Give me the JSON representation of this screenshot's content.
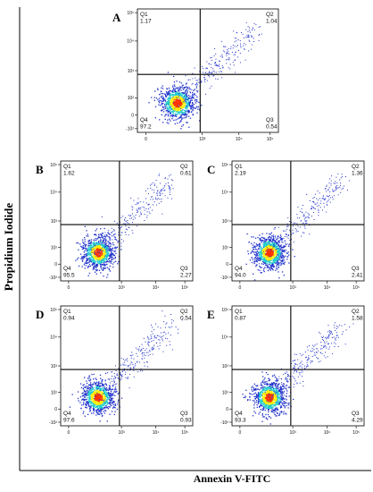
{
  "chart_data": {
    "type": "scatter",
    "ylabel": "Propidium Iodide",
    "xlabel": "Annexin V-FITC",
    "colors": {
      "density_low": "#2233cc",
      "density_mid": "#22cccc",
      "density_high": "#ffee00",
      "density_peak": "#ff3300",
      "gate": "#000000"
    },
    "y_ticks": [
      "10⁵",
      "10⁴",
      "10³",
      "10²",
      "0",
      "-10²"
    ],
    "x_ticks": [
      "0",
      "10³",
      "10⁴",
      "10⁵"
    ],
    "panels": [
      {
        "id": "A",
        "q1": {
          "label": "Q1",
          "value": "1.17"
        },
        "q2": {
          "label": "Q2",
          "value": "1.04"
        },
        "q3": {
          "label": "Q3",
          "value": "0.54"
        },
        "q4": {
          "label": "Q4",
          "value": "97.2"
        }
      },
      {
        "id": "B",
        "q1": {
          "label": "Q1",
          "value": "1.62"
        },
        "q2": {
          "label": "Q2",
          "value": "0.61"
        },
        "q3": {
          "label": "Q3",
          "value": "2.27"
        },
        "q4": {
          "label": "Q4",
          "value": "95.5"
        }
      },
      {
        "id": "C",
        "q1": {
          "label": "Q1",
          "value": "2.19"
        },
        "q2": {
          "label": "Q2",
          "value": "1.36"
        },
        "q3": {
          "label": "Q3",
          "value": "2.41"
        },
        "q4": {
          "label": "Q4",
          "value": "94.0"
        }
      },
      {
        "id": "D",
        "q1": {
          "label": "Q1",
          "value": "0.94"
        },
        "q2": {
          "label": "Q2",
          "value": "0.54"
        },
        "q3": {
          "label": "Q3",
          "value": "0.93"
        },
        "q4": {
          "label": "Q4",
          "value": "97.6"
        }
      },
      {
        "id": "E",
        "q1": {
          "label": "Q1",
          "value": "0.87"
        },
        "q2": {
          "label": "Q2",
          "value": "1.58"
        },
        "q3": {
          "label": "Q3",
          "value": "4.29"
        },
        "q4": {
          "label": "Q4",
          "value": "93.3"
        }
      }
    ]
  }
}
